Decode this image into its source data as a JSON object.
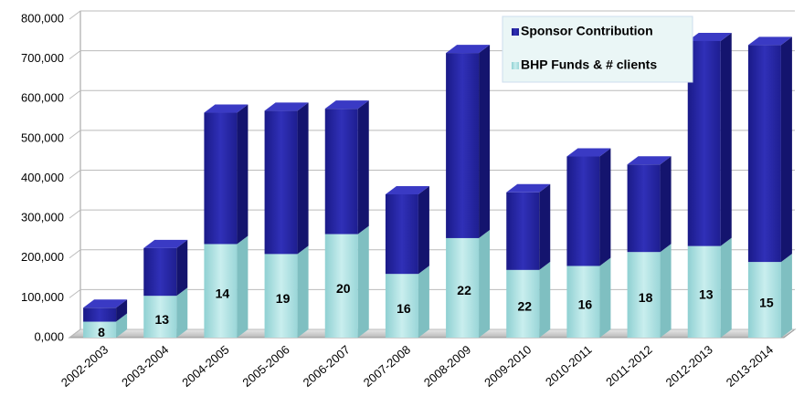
{
  "chart_data": {
    "type": "bar3d_stacked",
    "categories": [
      "2002-2003",
      "2003-2004",
      "2004-2005",
      "2005-2006",
      "2006-2007",
      "2007-2008",
      "2008-2009",
      "2009-2010",
      "2010-2011",
      "2011-2012",
      "2012-2013",
      "2013-2014"
    ],
    "series": [
      {
        "name": "BHP Funds & # clients",
        "color": "#a9dfe0",
        "values": [
          40000,
          105000,
          235000,
          210000,
          260000,
          160000,
          250000,
          170000,
          180000,
          215000,
          230000,
          190000
        ],
        "data_labels": [
          "8",
          "13",
          "14",
          "19",
          "20",
          "16",
          "22",
          "22",
          "16",
          "18",
          "13",
          "15"
        ]
      },
      {
        "name": "Sponsor Contribution",
        "color": "#23239a",
        "values": [
          35000,
          120000,
          330000,
          360000,
          315000,
          200000,
          465000,
          195000,
          275000,
          220000,
          515000,
          545000
        ]
      }
    ],
    "ylim": [
      0,
      800000
    ],
    "yticks": [
      {
        "value": 0,
        "label": "0,000"
      },
      {
        "value": 100000,
        "label": "100,000"
      },
      {
        "value": 200000,
        "label": "200,000"
      },
      {
        "value": 300000,
        "label": "300,000"
      },
      {
        "value": 400000,
        "label": "400,000"
      },
      {
        "value": 500000,
        "label": "500,000"
      },
      {
        "value": 600000,
        "label": "600,000"
      },
      {
        "value": 700000,
        "label": "700,000"
      },
      {
        "value": 800000,
        "label": "800,000"
      }
    ],
    "grid": true,
    "legend": "top-right"
  }
}
